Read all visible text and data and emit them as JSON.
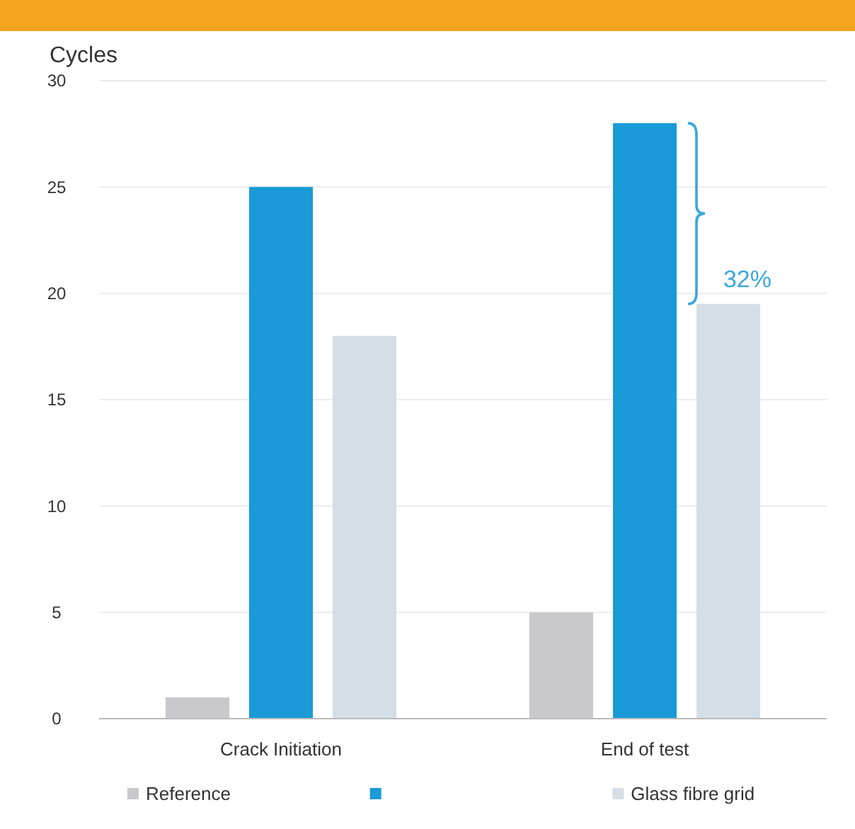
{
  "chart_data": {
    "type": "bar",
    "ylabel": "Cycles",
    "categories": [
      "Crack Initiation",
      "End of test"
    ],
    "series": [
      {
        "name": "Reference",
        "color": "#c9c9cb",
        "values": [
          1,
          5
        ]
      },
      {
        "color": "#1a9ad6",
        "values": [
          25,
          28
        ]
      },
      {
        "name": "Glass fibre grid",
        "color": "#d4dee6",
        "values": [
          18,
          19.5
        ]
      }
    ],
    "ylim": [
      0,
      30
    ],
    "yticks": [
      0,
      5,
      10,
      15,
      20,
      25,
      30
    ],
    "grid": "y",
    "legend": "bottom",
    "annotations": [
      "32%"
    ]
  }
}
